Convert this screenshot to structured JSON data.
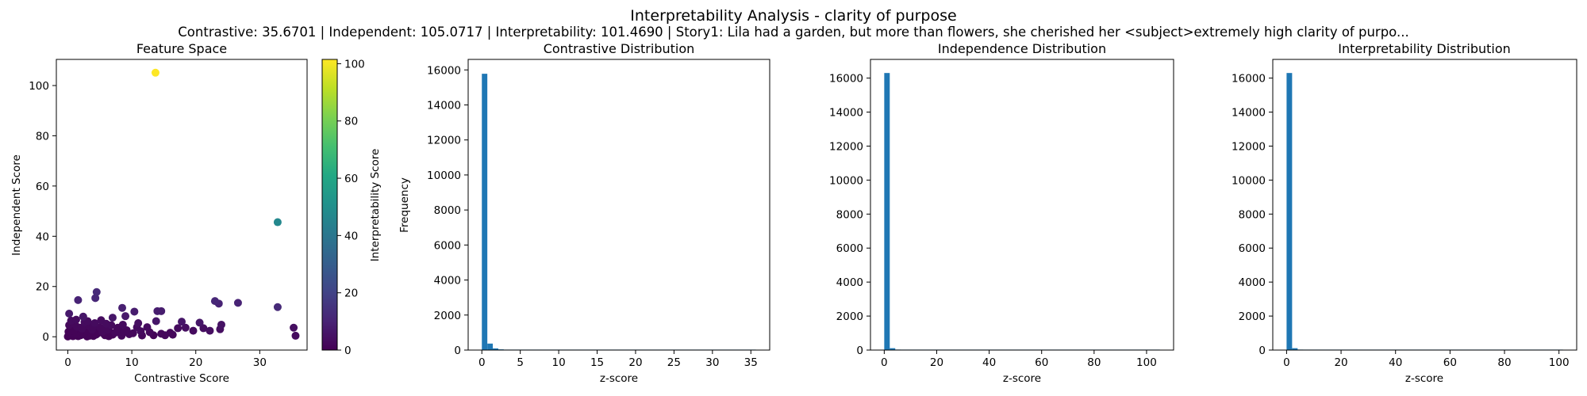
{
  "figure": {
    "title": "Interpretability Analysis - clarity of purpose",
    "subtitle": "Contrastive: 35.6701 | Independent: 105.0717 | Interpretability: 101.4690 | Story1: Lila had a garden, but more than flowers, she cherished her <subject>extremely high clarity of purpo..."
  },
  "chart_data": [
    {
      "type": "scatter",
      "title": "Feature Space",
      "xlabel": "Contrastive Score",
      "ylabel": "Independent Score",
      "xlim": [
        -1.8,
        37.4
      ],
      "ylim": [
        -5.3,
        110.4
      ],
      "xticks": [
        0,
        10,
        20,
        30
      ],
      "yticks": [
        0,
        20,
        40,
        60,
        80,
        100
      ],
      "grid": false,
      "colorbar": {
        "label": "Interpretability Score",
        "range": [
          0,
          101.5
        ],
        "ticks": [
          0,
          20,
          40,
          60,
          80,
          100
        ],
        "colormap": "viridis"
      },
      "points": [
        {
          "x": 13.7,
          "y": 105.1,
          "c": 101.5
        },
        {
          "x": 32.8,
          "y": 45.6,
          "c": 47.0
        },
        {
          "x": 32.8,
          "y": 11.8,
          "c": 12.0
        },
        {
          "x": 26.6,
          "y": 13.5,
          "c": 10.0
        },
        {
          "x": 23.0,
          "y": 14.2,
          "c": 11.0
        },
        {
          "x": 23.6,
          "y": 13.2,
          "c": 10.0
        },
        {
          "x": 4.5,
          "y": 17.8,
          "c": 12.0
        },
        {
          "x": 4.3,
          "y": 15.4,
          "c": 11.0
        },
        {
          "x": 1.6,
          "y": 14.6,
          "c": 10.0
        },
        {
          "x": 8.5,
          "y": 11.5,
          "c": 9.0
        },
        {
          "x": 10.4,
          "y": 10.0,
          "c": 8.0
        },
        {
          "x": 14.0,
          "y": 10.2,
          "c": 8.0
        },
        {
          "x": 14.6,
          "y": 10.2,
          "c": 8.0
        },
        {
          "x": 9.0,
          "y": 8.2,
          "c": 7.0
        },
        {
          "x": 7.0,
          "y": 7.6,
          "c": 6.0
        },
        {
          "x": 2.4,
          "y": 8.0,
          "c": 6.0
        },
        {
          "x": 0.2,
          "y": 9.2,
          "c": 7.0
        },
        {
          "x": 13.8,
          "y": 6.2,
          "c": 6.0
        },
        {
          "x": 17.8,
          "y": 6.0,
          "c": 6.0
        },
        {
          "x": 20.6,
          "y": 5.6,
          "c": 6.0
        },
        {
          "x": 21.2,
          "y": 3.4,
          "c": 4.0
        },
        {
          "x": 22.2,
          "y": 2.4,
          "c": 4.0
        },
        {
          "x": 23.8,
          "y": 3.0,
          "c": 4.0
        },
        {
          "x": 24.0,
          "y": 4.8,
          "c": 5.0
        },
        {
          "x": 35.3,
          "y": 3.6,
          "c": 4.0
        },
        {
          "x": 35.6,
          "y": 0.4,
          "c": 3.0
        },
        {
          "x": 18.4,
          "y": 3.6,
          "c": 4.0
        },
        {
          "x": 19.6,
          "y": 2.4,
          "c": 3.0
        },
        {
          "x": 17.2,
          "y": 3.4,
          "c": 3.0
        },
        {
          "x": 16.0,
          "y": 1.6,
          "c": 2.0
        },
        {
          "x": 15.2,
          "y": 0.6,
          "c": 2.0
        },
        {
          "x": 14.6,
          "y": 1.2,
          "c": 2.0
        },
        {
          "x": 16.4,
          "y": 0.8,
          "c": 2.0
        },
        {
          "x": 12.4,
          "y": 3.8,
          "c": 3.0
        },
        {
          "x": 11.0,
          "y": 5.4,
          "c": 4.0
        },
        {
          "x": 10.8,
          "y": 3.8,
          "c": 3.0
        },
        {
          "x": 11.4,
          "y": 2.2,
          "c": 3.0
        },
        {
          "x": 11.6,
          "y": 0.5,
          "c": 2.0
        },
        {
          "x": 9.6,
          "y": 1.0,
          "c": 2.0
        },
        {
          "x": 8.6,
          "y": 4.8,
          "c": 3.0
        },
        {
          "x": 8.0,
          "y": 2.6,
          "c": 2.0
        },
        {
          "x": 8.4,
          "y": 0.4,
          "c": 2.0
        },
        {
          "x": 7.4,
          "y": 1.6,
          "c": 2.0
        },
        {
          "x": 6.8,
          "y": 4.6,
          "c": 3.0
        },
        {
          "x": 6.2,
          "y": 2.8,
          "c": 2.0
        },
        {
          "x": 5.8,
          "y": 0.6,
          "c": 1.0
        },
        {
          "x": 5.4,
          "y": 2.0,
          "c": 2.0
        },
        {
          "x": 5.0,
          "y": 3.8,
          "c": 2.0
        },
        {
          "x": 4.6,
          "y": 1.2,
          "c": 1.0
        },
        {
          "x": 4.2,
          "y": 5.4,
          "c": 3.0
        },
        {
          "x": 3.8,
          "y": 2.8,
          "c": 2.0
        },
        {
          "x": 3.4,
          "y": 0.4,
          "c": 1.0
        },
        {
          "x": 3.2,
          "y": 4.4,
          "c": 2.0
        },
        {
          "x": 2.8,
          "y": 1.8,
          "c": 1.0
        },
        {
          "x": 2.6,
          "y": 5.8,
          "c": 3.0
        },
        {
          "x": 2.2,
          "y": 3.2,
          "c": 2.0
        },
        {
          "x": 2.0,
          "y": 0.6,
          "c": 1.0
        },
        {
          "x": 1.8,
          "y": 2.2,
          "c": 1.0
        },
        {
          "x": 1.4,
          "y": 4.0,
          "c": 2.0
        },
        {
          "x": 1.2,
          "y": 1.0,
          "c": 1.0
        },
        {
          "x": 1.0,
          "y": 2.8,
          "c": 1.0
        },
        {
          "x": 0.8,
          "y": 0.2,
          "c": 0.5
        },
        {
          "x": 0.6,
          "y": 1.6,
          "c": 1.0
        },
        {
          "x": 0.4,
          "y": 3.4,
          "c": 1.0
        },
        {
          "x": 0.3,
          "y": 0.8,
          "c": 0.5
        },
        {
          "x": 0.1,
          "y": 2.0,
          "c": 0.5
        },
        {
          "x": 0.0,
          "y": 0.1,
          "c": 0.2
        },
        {
          "x": 0.2,
          "y": 4.6,
          "c": 2.0
        },
        {
          "x": 0.9,
          "y": 5.2,
          "c": 2.0
        },
        {
          "x": 1.6,
          "y": 0.2,
          "c": 0.5
        },
        {
          "x": 2.4,
          "y": 1.2,
          "c": 1.0
        },
        {
          "x": 3.0,
          "y": 0.1,
          "c": 0.5
        },
        {
          "x": 3.6,
          "y": 1.6,
          "c": 1.0
        },
        {
          "x": 4.0,
          "y": 0.3,
          "c": 0.5
        },
        {
          "x": 4.8,
          "y": 2.6,
          "c": 1.0
        },
        {
          "x": 5.6,
          "y": 1.2,
          "c": 1.0
        },
        {
          "x": 6.4,
          "y": 0.2,
          "c": 0.5
        },
        {
          "x": 7.0,
          "y": 0.8,
          "c": 1.0
        },
        {
          "x": 7.8,
          "y": 3.6,
          "c": 2.0
        },
        {
          "x": 9.2,
          "y": 2.6,
          "c": 2.0
        },
        {
          "x": 10.2,
          "y": 1.4,
          "c": 2.0
        },
        {
          "x": 12.8,
          "y": 1.8,
          "c": 2.0
        },
        {
          "x": 13.4,
          "y": 0.6,
          "c": 1.0
        },
        {
          "x": 0.5,
          "y": 6.4,
          "c": 3.0
        },
        {
          "x": 1.3,
          "y": 6.8,
          "c": 3.0
        },
        {
          "x": 3.1,
          "y": 6.2,
          "c": 3.0
        },
        {
          "x": 5.2,
          "y": 6.6,
          "c": 3.0
        },
        {
          "x": 6.0,
          "y": 5.2,
          "c": 3.0
        },
        {
          "x": 0.7,
          "y": 2.4,
          "c": 1.0
        },
        {
          "x": 1.9,
          "y": 3.6,
          "c": 1.0
        },
        {
          "x": 2.9,
          "y": 2.4,
          "c": 1.0
        },
        {
          "x": 3.9,
          "y": 3.8,
          "c": 2.0
        },
        {
          "x": 4.4,
          "y": 0.8,
          "c": 1.0
        },
        {
          "x": 5.9,
          "y": 3.4,
          "c": 2.0
        },
        {
          "x": 6.6,
          "y": 1.8,
          "c": 1.0
        },
        {
          "x": 7.6,
          "y": 2.2,
          "c": 2.0
        },
        {
          "x": 8.8,
          "y": 1.8,
          "c": 2.0
        }
      ]
    },
    {
      "type": "bar",
      "title": "Contrastive Distribution",
      "xlabel": "z-score",
      "ylabel": "Frequency",
      "xlim": [
        -1.78,
        37.45
      ],
      "ylim": [
        0,
        16600
      ],
      "xticks": [
        0,
        5,
        10,
        15,
        20,
        25,
        30,
        35
      ],
      "yticks": [
        0,
        2000,
        4000,
        6000,
        8000,
        10000,
        12000,
        14000,
        16000
      ],
      "bin_start": 0,
      "bin_width": 0.713,
      "values": [
        15780,
        370,
        95,
        40,
        20,
        12,
        8,
        5,
        4,
        3,
        3,
        2,
        2,
        2,
        1,
        1,
        1,
        1,
        1,
        1,
        1,
        1,
        1,
        1,
        1,
        1,
        1,
        1,
        1,
        1,
        1,
        1,
        1,
        1,
        1,
        1,
        1,
        1,
        1,
        1,
        1,
        1,
        1,
        1,
        1,
        1,
        1,
        1,
        1,
        1
      ]
    },
    {
      "type": "bar",
      "title": "Independence Distribution",
      "xlabel": "z-score",
      "ylabel": "",
      "xlim": [
        -5.25,
        110.3
      ],
      "ylim": [
        0,
        17100
      ],
      "xticks": [
        0,
        20,
        40,
        60,
        80,
        100
      ],
      "yticks": [
        0,
        2000,
        4000,
        6000,
        8000,
        10000,
        12000,
        14000,
        16000
      ],
      "bin_start": 0,
      "bin_width": 2.101,
      "values": [
        16300,
        110,
        30,
        12,
        6,
        4,
        3,
        2,
        2,
        1,
        1,
        1,
        1,
        1,
        1,
        1,
        1,
        1,
        1,
        1,
        1,
        1,
        1,
        1,
        1,
        1,
        1,
        1,
        1,
        1,
        1,
        1,
        1,
        1,
        1,
        1,
        1,
        1,
        1,
        1,
        1,
        1,
        1,
        1,
        1,
        1,
        1,
        1,
        1,
        1
      ]
    },
    {
      "type": "bar",
      "title": "Interpretability Distribution",
      "xlabel": "z-score",
      "ylabel": "",
      "xlim": [
        -5.07,
        106.5
      ],
      "ylim": [
        0,
        17100
      ],
      "xticks": [
        0,
        20,
        40,
        60,
        80,
        100
      ],
      "yticks": [
        0,
        2000,
        4000,
        6000,
        8000,
        10000,
        12000,
        14000,
        16000
      ],
      "bin_start": 0,
      "bin_width": 2.029,
      "values": [
        16300,
        110,
        30,
        12,
        6,
        4,
        3,
        2,
        2,
        1,
        1,
        1,
        1,
        1,
        1,
        1,
        1,
        1,
        1,
        1,
        1,
        1,
        1,
        1,
        1,
        1,
        1,
        1,
        1,
        1,
        1,
        1,
        1,
        1,
        1,
        1,
        1,
        1,
        1,
        1,
        1,
        1,
        1,
        1,
        1,
        1,
        1,
        1,
        1,
        1
      ]
    }
  ],
  "colors": {
    "bar": "#1f77b4",
    "axes": "#000000",
    "background": "#ffffff"
  }
}
